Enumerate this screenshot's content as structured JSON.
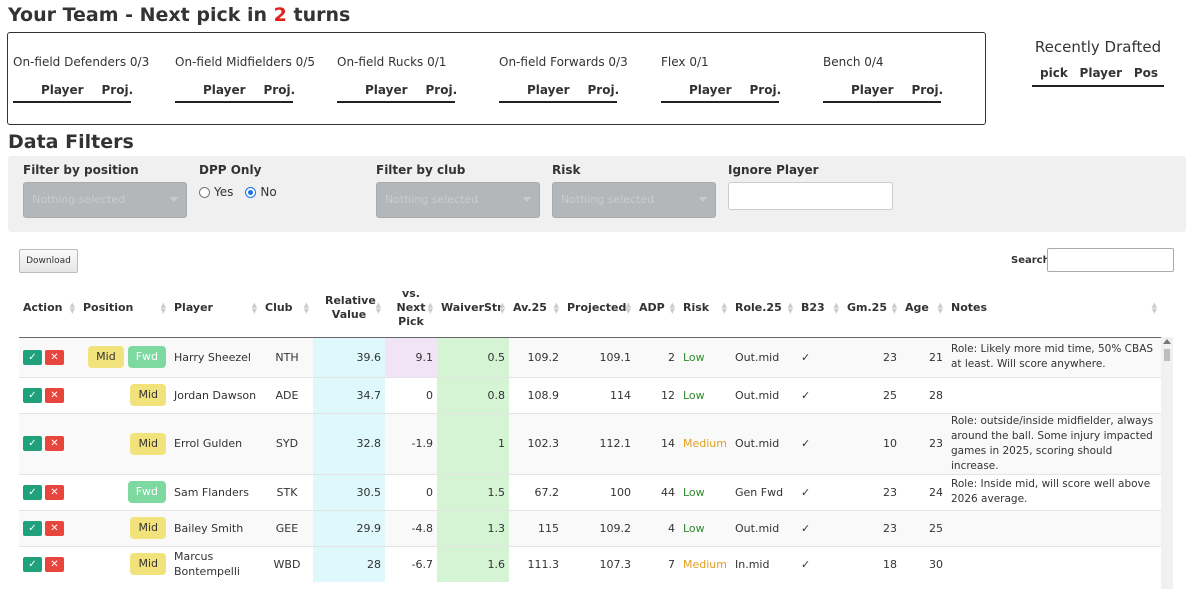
{
  "header": {
    "title_prefix": "Your Team - Next pick in ",
    "turns": "2",
    "title_suffix": " turns"
  },
  "team_slots": [
    {
      "label": "On-field Defenders 0/3",
      "col1": "Player",
      "col2": "Proj."
    },
    {
      "label": "On-field Midfielders 0/5",
      "col1": "Player",
      "col2": "Proj."
    },
    {
      "label": "On-field Rucks 0/1",
      "col1": "Player",
      "col2": "Proj."
    },
    {
      "label": "On-field Forwards 0/3",
      "col1": "Player",
      "col2": "Proj."
    },
    {
      "label": "Flex 0/1",
      "col1": "Player",
      "col2": "Proj."
    },
    {
      "label": "Bench 0/4",
      "col1": "Player",
      "col2": "Proj."
    }
  ],
  "recently_drafted": {
    "title": "Recently Drafted",
    "columns": [
      "pick",
      "Player",
      "Pos"
    ]
  },
  "filters": {
    "title": "Data Filters",
    "position_label": "Filter by position",
    "position_placeholder": "Nothing selected",
    "dpp_label": "DPP Only",
    "dpp_yes": "Yes",
    "dpp_no": "No",
    "dpp_selected": "No",
    "club_label": "Filter by club",
    "club_placeholder": "Nothing selected",
    "risk_label": "Risk",
    "risk_placeholder": "Nothing selected",
    "ignore_label": "Ignore Player"
  },
  "toolbar": {
    "download_label": "Download",
    "search_label": "Search:"
  },
  "table": {
    "columns": [
      "Action",
      "Position",
      "Player",
      "Club",
      "Relative Value",
      "vs. Next Pick",
      "WaiverStr",
      "Av.25",
      "Projected",
      "ADP",
      "Risk",
      "Role.25",
      "B23",
      "Gm.25",
      "Age",
      "Notes"
    ],
    "rows": [
      {
        "positions": [
          "Mid",
          "Fwd"
        ],
        "player": "Harry Sheezel",
        "club": "NTH",
        "relative_value": "39.6",
        "vs_next": "9.1",
        "waiver": "0.5",
        "av25": "109.2",
        "projected": "109.1",
        "adp": "2",
        "risk": "Low",
        "role": "Out.mid",
        "b23": "✓",
        "gm25": "23",
        "age": "21",
        "notes": "Role: Likely more mid time, 50% CBAS at least. Will score anywhere."
      },
      {
        "positions": [
          "Mid"
        ],
        "player": "Jordan Dawson",
        "club": "ADE",
        "relative_value": "34.7",
        "vs_next": "0",
        "waiver": "0.8",
        "av25": "108.9",
        "projected": "114",
        "adp": "12",
        "risk": "Low",
        "role": "Out.mid",
        "b23": "✓",
        "gm25": "25",
        "age": "28",
        "notes": ""
      },
      {
        "positions": [
          "Mid"
        ],
        "player": "Errol Gulden",
        "club": "SYD",
        "relative_value": "32.8",
        "vs_next": "-1.9",
        "waiver": "1",
        "av25": "102.3",
        "projected": "112.1",
        "adp": "14",
        "risk": "Medium",
        "role": "Out.mid",
        "b23": "✓",
        "gm25": "10",
        "age": "23",
        "notes": "Role: outside/inside midfielder, always around the ball. Some injury impacted games in 2025, scoring should increase."
      },
      {
        "positions": [
          "Fwd"
        ],
        "player": "Sam Flanders",
        "club": "STK",
        "relative_value": "30.5",
        "vs_next": "0",
        "waiver": "1.5",
        "av25": "67.2",
        "projected": "100",
        "adp": "44",
        "risk": "Low",
        "role": "Gen Fwd",
        "b23": "✓",
        "gm25": "23",
        "age": "24",
        "notes": "Role: Inside mid, will score well above 2026 average."
      },
      {
        "positions": [
          "Mid"
        ],
        "player": "Bailey Smith",
        "club": "GEE",
        "relative_value": "29.9",
        "vs_next": "-4.8",
        "waiver": "1.3",
        "av25": "115",
        "projected": "109.2",
        "adp": "4",
        "risk": "Low",
        "role": "Out.mid",
        "b23": "✓",
        "gm25": "23",
        "age": "25",
        "notes": ""
      },
      {
        "positions": [
          "Mid"
        ],
        "player": "Marcus Bontempelli",
        "club": "WBD",
        "relative_value": "28",
        "vs_next": "-6.7",
        "waiver": "1.6",
        "av25": "111.3",
        "projected": "107.3",
        "adp": "7",
        "risk": "Medium",
        "role": "In.mid",
        "b23": "✓",
        "gm25": "18",
        "age": "30",
        "notes": ""
      }
    ]
  },
  "colors": {
    "turns_red": "#e02020",
    "approve_green": "#1fa27c",
    "reject_red": "#e8453c",
    "mid_yellow": "#f2e27b",
    "fwd_green": "#7ed9a0",
    "relative_cyan": "#dff8fb",
    "waiver_green": "#d4f4d4",
    "risk_low": "#2e8b2e",
    "risk_medium": "#e0a020"
  }
}
